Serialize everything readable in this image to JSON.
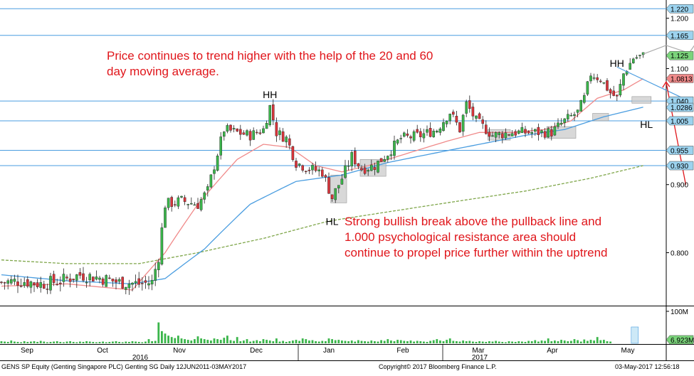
{
  "chart_data": {
    "type": "line",
    "subtype": "candlestick",
    "instrument": "GENS SP Equity (Genting Singapore PLC) Genting SG  Daily 12JUN2011-03MAY2017",
    "copyright": "Copyright© 2017 Bloomberg Finance L.P.",
    "date_stamp": "03-May-2017 12:56:18",
    "x_tick_labels": [
      "Sep",
      "Oct",
      "Nov",
      "Dec",
      "Jan",
      "Feb",
      "Mar",
      "Apr",
      "May"
    ],
    "x_year_labels": [
      "2016",
      "2017"
    ],
    "price_axis": {
      "ticks": [
        1.2,
        1.1,
        0.9,
        0.8
      ],
      "tick_labels": [
        "1.200",
        "1.100",
        "0.900",
        "0.800"
      ],
      "range": [
        0.73,
        1.237
      ]
    },
    "level_tags": [
      {
        "label": "1.220",
        "value": 1.22,
        "color": "#9cd3ef"
      },
      {
        "label": "1.165",
        "value": 1.165,
        "color": "#9cd3ef"
      },
      {
        "label": "1.125",
        "value": 1.125,
        "color": "#7bd47b"
      },
      {
        "label": "1.0813",
        "value": 1.0813,
        "color": "#f08a8a"
      },
      {
        "label": "1.040",
        "value": 1.04,
        "color": "#9cd3ef"
      },
      {
        "label": "1.0286",
        "value": 1.0286,
        "color": "#9cd3ef"
      },
      {
        "label": "1.005",
        "value": 1.005,
        "color": "#9cd3ef"
      },
      {
        "label": "0.955",
        "value": 0.955,
        "color": "#9cd3ef"
      },
      {
        "label": "0.930",
        "value": 0.93,
        "color": "#9cd3ef"
      }
    ],
    "horizontal_lines": [
      1.22,
      1.165,
      1.04,
      1.005,
      0.955,
      0.93
    ],
    "volume_axis": {
      "tick_label": "100M",
      "last_label": "6.923M",
      "last_color": "#7bd47b"
    },
    "annotations": {
      "top_text_line1": "Price continues to trend higher with the help of the 20 and 60",
      "top_text_line2": "day moving average.",
      "bottom_text_line1": "Strong bullish break above the pullback line and",
      "bottom_text_line2": "1.000 psychological resistance area should",
      "bottom_text_line3": "continue to propel price further within the uptrend",
      "hh_label_1": "HH",
      "hh_label_2": "HH",
      "hl_label_1": "HL",
      "hl_label_2": "HL"
    },
    "colors": {
      "up": "#3ab54a",
      "down": "#d9343a",
      "ma20": "#f08a8a",
      "ma60": "#4a9de0",
      "ma200": "#7fa64a",
      "level_line": "#4a9de0",
      "annotation": "#e0161b",
      "volume": "#3ab54a"
    },
    "ohlc_anchors": [
      [
        0,
        0.76
      ],
      [
        6,
        0.762
      ],
      [
        12,
        0.758
      ],
      [
        18,
        0.762
      ],
      [
        24,
        0.77
      ],
      [
        30,
        0.766
      ],
      [
        36,
        0.76
      ],
      [
        42,
        0.758
      ],
      [
        46,
        0.76
      ],
      [
        48,
        0.795
      ],
      [
        50,
        0.87
      ],
      [
        55,
        0.875
      ],
      [
        60,
        0.87
      ],
      [
        63,
        0.89
      ],
      [
        68,
        0.99
      ],
      [
        72,
        0.985
      ],
      [
        76,
        0.98
      ],
      [
        80,
        0.99
      ],
      [
        82,
        1.03
      ],
      [
        84,
        0.985
      ],
      [
        87,
        0.975
      ],
      [
        90,
        0.935
      ],
      [
        94,
        0.925
      ],
      [
        98,
        0.92
      ],
      [
        101,
        0.88
      ],
      [
        104,
        0.91
      ],
      [
        107,
        0.945
      ],
      [
        110,
        0.925
      ],
      [
        114,
        0.93
      ],
      [
        118,
        0.95
      ],
      [
        122,
        0.975
      ],
      [
        128,
        0.98
      ],
      [
        133,
        0.99
      ],
      [
        137,
        1.02
      ],
      [
        140,
        0.99
      ],
      [
        142,
        1.035
      ],
      [
        145,
        1.005
      ],
      [
        150,
        0.98
      ],
      [
        156,
        0.985
      ],
      [
        162,
        0.985
      ],
      [
        168,
        0.985
      ],
      [
        172,
        1.005
      ],
      [
        176,
        1.02
      ],
      [
        178,
        1.045
      ],
      [
        180,
        1.09
      ],
      [
        183,
        1.08
      ],
      [
        186,
        1.055
      ],
      [
        188,
        1.045
      ],
      [
        190,
        1.09
      ],
      [
        193,
        1.12
      ],
      [
        196,
        1.125
      ]
    ],
    "ma20_anchors": [
      [
        0,
        0.755
      ],
      [
        20,
        0.758
      ],
      [
        40,
        0.75
      ],
      [
        50,
        0.8
      ],
      [
        60,
        0.87
      ],
      [
        72,
        0.94
      ],
      [
        80,
        0.965
      ],
      [
        88,
        0.96
      ],
      [
        96,
        0.93
      ],
      [
        104,
        0.92
      ],
      [
        112,
        0.93
      ],
      [
        124,
        0.95
      ],
      [
        136,
        0.97
      ],
      [
        146,
        0.985
      ],
      [
        156,
        0.985
      ],
      [
        166,
        0.99
      ],
      [
        174,
        1.005
      ],
      [
        182,
        1.045
      ],
      [
        190,
        1.06
      ],
      [
        196,
        1.081
      ]
    ],
    "ma60_anchors": [
      [
        0,
        0.77
      ],
      [
        20,
        0.762
      ],
      [
        40,
        0.758
      ],
      [
        50,
        0.765
      ],
      [
        62,
        0.805
      ],
      [
        76,
        0.87
      ],
      [
        90,
        0.905
      ],
      [
        104,
        0.915
      ],
      [
        118,
        0.935
      ],
      [
        132,
        0.95
      ],
      [
        146,
        0.965
      ],
      [
        160,
        0.98
      ],
      [
        172,
        0.99
      ],
      [
        184,
        1.012
      ],
      [
        196,
        1.029
      ]
    ],
    "ma200_anchors": [
      [
        0,
        0.79
      ],
      [
        20,
        0.785
      ],
      [
        42,
        0.785
      ],
      [
        60,
        0.8
      ],
      [
        80,
        0.82
      ],
      [
        100,
        0.845
      ],
      [
        120,
        0.86
      ],
      [
        140,
        0.875
      ],
      [
        160,
        0.89
      ],
      [
        180,
        0.91
      ],
      [
        196,
        0.93
      ]
    ],
    "projection_path": [
      [
        196,
        1.128
      ],
      [
        203,
        1.145
      ],
      [
        210,
        1.13
      ],
      [
        217,
        1.195
      ]
    ],
    "highlight_boxes": [
      {
        "x0": 101,
        "x1": 105,
        "y0": 0.872,
        "y1": 0.915
      },
      {
        "x0": 110,
        "x1": 117,
        "y0": 0.913,
        "y1": 0.94
      },
      {
        "x0": 149,
        "x1": 155,
        "y0": 0.972,
        "y1": 0.99
      },
      {
        "x0": 167,
        "x1": 175,
        "y0": 0.975,
        "y1": 0.995
      },
      {
        "x0": 181,
        "x1": 185,
        "y0": 1.005,
        "y1": 1.018
      },
      {
        "x0": 193,
        "x1": 198,
        "y0": 1.036,
        "y1": 1.048
      }
    ],
    "pullback_line": [
      [
        188,
        1.103
      ],
      [
        210,
        1.04
      ]
    ],
    "hh_points": [
      [
        82,
        1.03
      ],
      [
        188,
        1.095
      ]
    ],
    "hl_points": [
      [
        101,
        0.86
      ],
      [
        197,
        1.02
      ]
    ],
    "arrow": {
      "from": [
        209,
        0.9
      ],
      "to": [
        203,
        1.075
      ]
    },
    "volume_values": [
      6,
      5,
      4,
      8,
      5,
      4,
      3,
      6,
      4,
      5,
      6,
      4,
      7,
      5,
      3,
      4,
      5,
      6,
      4,
      3,
      5,
      6,
      4,
      3,
      5,
      4,
      6,
      5,
      4,
      3,
      4,
      5,
      3,
      4,
      5,
      6,
      4,
      3,
      5,
      4,
      6,
      5,
      4,
      3,
      5,
      12,
      6,
      7,
      60,
      35,
      28,
      22,
      18,
      15,
      22,
      14,
      12,
      10,
      8,
      12,
      20,
      14,
      12,
      10,
      8,
      14,
      12,
      10,
      16,
      22,
      9,
      7,
      18,
      6,
      8,
      12,
      5,
      7,
      9,
      6,
      12,
      10,
      8,
      6,
      14,
      5,
      7,
      4,
      6,
      8,
      10,
      7,
      14,
      12,
      8,
      9,
      6,
      5,
      7,
      6,
      14,
      12,
      9,
      10,
      8,
      7,
      6,
      8,
      5,
      9,
      7,
      6,
      5,
      8,
      6,
      5,
      9,
      7,
      12,
      8,
      6,
      10,
      9,
      7,
      6,
      8,
      5,
      7,
      6,
      5,
      4,
      7,
      9,
      12,
      8,
      6,
      10,
      14,
      7,
      6,
      5,
      8,
      6,
      7,
      5,
      4,
      6,
      5,
      4,
      6,
      5,
      7,
      5,
      4,
      3,
      6,
      5,
      4,
      6,
      5,
      4,
      7,
      6,
      9,
      5,
      8,
      7,
      14,
      6,
      8,
      6,
      10,
      8,
      6,
      7,
      12,
      9,
      5,
      11,
      7,
      10,
      8,
      18,
      9,
      10,
      6,
      5
    ]
  }
}
